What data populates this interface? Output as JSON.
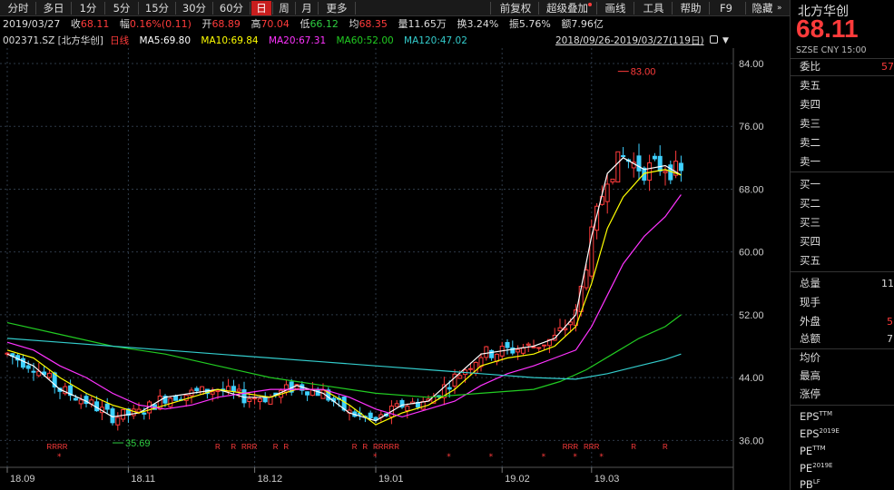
{
  "toolbar": {
    "items": [
      "分时",
      "多日",
      "1分",
      "5分",
      "15分",
      "30分",
      "60分",
      "日",
      "周",
      "月",
      "更多"
    ],
    "active": "日",
    "right_items": [
      "前复权",
      "超级叠加",
      "画线",
      "工具",
      "帮助",
      "F9",
      "隐藏"
    ]
  },
  "info": {
    "date": "2019/03/27",
    "close_label": "收",
    "close": "68.11",
    "amp_label": "幅",
    "amp": "0.16%(0.11)",
    "open_label": "开",
    "open": "68.89",
    "high_label": "高",
    "high": "70.04",
    "low_label": "低",
    "low": "66.12",
    "avg_label": "均",
    "avg": "68.35",
    "vol_label": "量",
    "vol": "11.65万",
    "turn_label": "换",
    "turn": "3.24%",
    "swing_label": "振",
    "swing": "5.76%",
    "amount_label": "额",
    "amount": "7.96亿"
  },
  "ma_bar": {
    "code": "002371.SZ",
    "name": "[北方华创]",
    "period": "日线",
    "ma5": "MA5:69.80",
    "ma10": "MA10:69.84",
    "ma20": "MA20:67.31",
    "ma60": "MA60:52.00",
    "ma120": "MA120:47.02",
    "range": "2018/09/26-2019/03/27(119日)"
  },
  "colors": {
    "up": "#ff3b3b",
    "down": "#3ed1ff",
    "ma5": "#ffffff",
    "ma10": "#ffff00",
    "ma20": "#ff33ff",
    "ma60": "#22cc22",
    "ma120": "#33cccc",
    "grid": "#2e3a48"
  },
  "chart_data": {
    "type": "line",
    "title": "",
    "xlabel": "",
    "ylabel": "",
    "ylim": [
      33.5,
      85.5
    ],
    "y_ticks": [
      "84.00",
      "76.00",
      "68.00",
      "60.00",
      "52.00",
      "44.00",
      "36.00"
    ],
    "y_tick_values": [
      84,
      76,
      68,
      60,
      52,
      44,
      36
    ],
    "x_ticks": [
      "18.09",
      "18.11",
      "18.12",
      "19.01",
      "19.02",
      "19.03"
    ],
    "x_tick_days": [
      0,
      23,
      47,
      70,
      94,
      111
    ],
    "num_days": 133,
    "annotations": [
      {
        "label": "83.00",
        "day": 116,
        "value": 83.0
      },
      {
        "label": "35.69",
        "day": 20,
        "value": 35.69
      }
    ],
    "series": [
      {
        "name": "MA5",
        "values": [
          [
            0,
            47.0
          ],
          [
            5,
            45.5
          ],
          [
            10,
            42.5
          ],
          [
            15,
            41.0
          ],
          [
            20,
            39.0
          ],
          [
            25,
            39.5
          ],
          [
            30,
            41.5
          ],
          [
            35,
            42.0
          ],
          [
            40,
            42.5
          ],
          [
            45,
            41.5
          ],
          [
            50,
            41.5
          ],
          [
            55,
            43.0
          ],
          [
            60,
            42.0
          ],
          [
            65,
            39.5
          ],
          [
            70,
            38.5
          ],
          [
            75,
            40.5
          ],
          [
            80,
            41.0
          ],
          [
            85,
            44.0
          ],
          [
            90,
            47.0
          ],
          [
            95,
            47.5
          ],
          [
            100,
            48.0
          ],
          [
            104,
            49.0
          ],
          [
            108,
            52.0
          ],
          [
            111,
            62.0
          ],
          [
            114,
            70.0
          ],
          [
            117,
            72.0
          ],
          [
            121,
            70.5
          ],
          [
            125,
            71.0
          ],
          [
            128,
            69.8
          ]
        ]
      },
      {
        "name": "MA10",
        "values": [
          [
            0,
            47.5
          ],
          [
            5,
            46.5
          ],
          [
            10,
            44.0
          ],
          [
            15,
            42.0
          ],
          [
            20,
            40.5
          ],
          [
            25,
            39.5
          ],
          [
            30,
            40.5
          ],
          [
            35,
            41.5
          ],
          [
            40,
            42.5
          ],
          [
            45,
            42.0
          ],
          [
            50,
            41.5
          ],
          [
            55,
            42.5
          ],
          [
            60,
            42.5
          ],
          [
            65,
            40.5
          ],
          [
            70,
            38.0
          ],
          [
            75,
            39.5
          ],
          [
            80,
            40.5
          ],
          [
            85,
            42.5
          ],
          [
            90,
            45.5
          ],
          [
            95,
            46.5
          ],
          [
            100,
            47.0
          ],
          [
            104,
            48.0
          ],
          [
            108,
            50.5
          ],
          [
            111,
            56.0
          ],
          [
            114,
            63.0
          ],
          [
            117,
            67.0
          ],
          [
            121,
            70.0
          ],
          [
            125,
            70.5
          ],
          [
            128,
            69.8
          ]
        ]
      },
      {
        "name": "MA20",
        "values": [
          [
            0,
            48.5
          ],
          [
            5,
            47.5
          ],
          [
            10,
            45.5
          ],
          [
            15,
            44.0
          ],
          [
            20,
            42.0
          ],
          [
            25,
            40.5
          ],
          [
            30,
            40.0
          ],
          [
            35,
            40.5
          ],
          [
            40,
            41.5
          ],
          [
            45,
            42.0
          ],
          [
            50,
            42.5
          ],
          [
            55,
            42.5
          ],
          [
            60,
            42.5
          ],
          [
            65,
            41.5
          ],
          [
            70,
            40.0
          ],
          [
            75,
            39.0
          ],
          [
            80,
            40.0
          ],
          [
            85,
            41.0
          ],
          [
            90,
            43.0
          ],
          [
            95,
            44.5
          ],
          [
            100,
            45.5
          ],
          [
            104,
            46.5
          ],
          [
            108,
            47.5
          ],
          [
            111,
            50.5
          ],
          [
            114,
            54.5
          ],
          [
            117,
            58.5
          ],
          [
            121,
            62.0
          ],
          [
            125,
            64.5
          ],
          [
            128,
            67.3
          ]
        ]
      },
      {
        "name": "MA60",
        "values": [
          [
            0,
            51.0
          ],
          [
            10,
            49.5
          ],
          [
            20,
            48.0
          ],
          [
            30,
            47.0
          ],
          [
            40,
            45.5
          ],
          [
            50,
            44.0
          ],
          [
            60,
            43.0
          ],
          [
            70,
            42.0
          ],
          [
            80,
            41.5
          ],
          [
            90,
            42.0
          ],
          [
            100,
            42.5
          ],
          [
            105,
            43.5
          ],
          [
            110,
            45.0
          ],
          [
            115,
            47.0
          ],
          [
            120,
            49.0
          ],
          [
            125,
            50.5
          ],
          [
            128,
            52.0
          ]
        ]
      },
      {
        "name": "MA120",
        "values": [
          [
            0,
            49.0
          ],
          [
            10,
            48.5
          ],
          [
            20,
            48.0
          ],
          [
            30,
            47.5
          ],
          [
            40,
            47.0
          ],
          [
            50,
            46.5
          ],
          [
            60,
            46.0
          ],
          [
            70,
            45.5
          ],
          [
            80,
            45.0
          ],
          [
            90,
            44.5
          ],
          [
            100,
            44.0
          ],
          [
            108,
            43.8
          ],
          [
            114,
            44.5
          ],
          [
            120,
            45.5
          ],
          [
            125,
            46.3
          ],
          [
            128,
            47.0
          ]
        ]
      }
    ],
    "r_marks": [
      8,
      9,
      10,
      11,
      40,
      43,
      45,
      46,
      47,
      51,
      53,
      66,
      68,
      70,
      71,
      72,
      73,
      74,
      106,
      107,
      108,
      110,
      111,
      112,
      119,
      125
    ],
    "star_marks": [
      10,
      70,
      84,
      92,
      102,
      108,
      113
    ]
  },
  "right_panel": {
    "title": "北方华创",
    "price": "68.11",
    "meta": "SZSE  CNY  15:00",
    "rows": [
      "委比",
      "卖五",
      "卖四",
      "卖三",
      "卖二",
      "卖一",
      "买一",
      "买二",
      "买三",
      "买四",
      "买五"
    ],
    "webi_value": "57",
    "stats": [
      "总量",
      "现手",
      "外盘",
      "总额",
      "均价",
      "最高",
      "涨停"
    ],
    "stat_values": [
      "11",
      "",
      "5",
      "7",
      "",
      "",
      ""
    ],
    "fin": [
      "EPS",
      "EPS",
      "PE",
      "PE",
      "PB"
    ],
    "fin_sup": [
      "TTM",
      "2019E",
      "TTM",
      "2019E",
      "LF"
    ]
  }
}
